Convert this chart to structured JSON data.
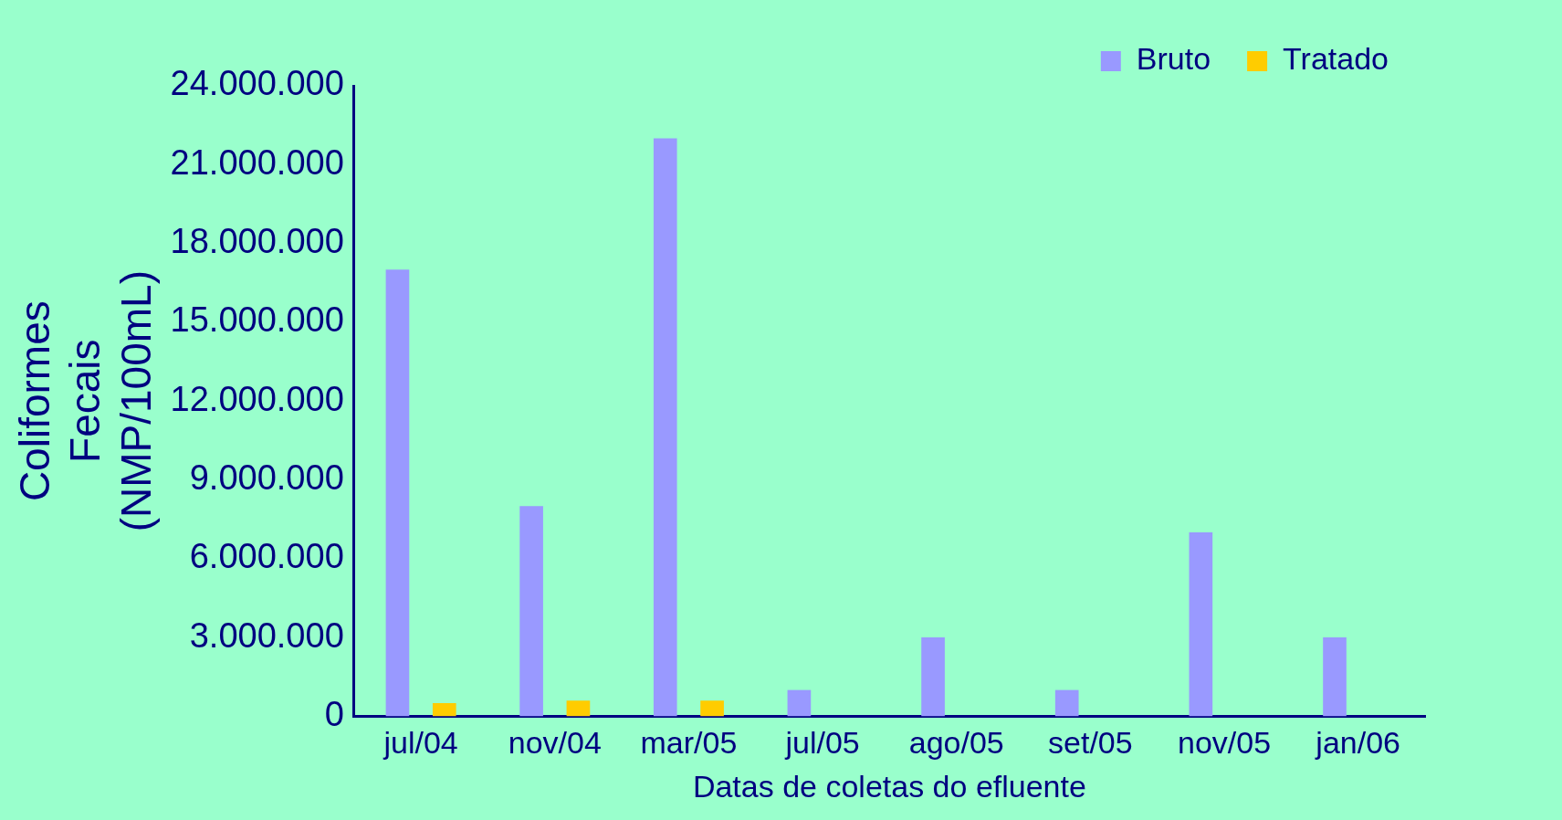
{
  "chart_data": {
    "type": "bar",
    "xlabel": "Datas de coletas do efluente",
    "ylabel": "Coliformes Fecais (NMP/100mL)",
    "categories": [
      "jul/04",
      "nov/04",
      "mar/05",
      "jul/05",
      "ago/05",
      "set/05",
      "nov/05",
      "jan/06"
    ],
    "series": [
      {
        "name": "Bruto",
        "color": "#9999ff",
        "values": [
          17000000,
          8000000,
          22000000,
          1000000,
          3000000,
          1000000,
          7000000,
          3000000
        ]
      },
      {
        "name": "Tratado",
        "color": "#ffcc00",
        "values": [
          500000,
          600000,
          600000,
          0,
          0,
          0,
          0,
          0
        ]
      }
    ],
    "ylim": [
      0,
      24000000
    ],
    "yticks": [
      {
        "value": 0,
        "label": "0"
      },
      {
        "value": 3000000,
        "label": "3.000.000"
      },
      {
        "value": 6000000,
        "label": "6.000.000"
      },
      {
        "value": 9000000,
        "label": "9.000.000"
      },
      {
        "value": 12000000,
        "label": "12.000.000"
      },
      {
        "value": 15000000,
        "label": "15.000.000"
      },
      {
        "value": 18000000,
        "label": "18.000.000"
      },
      {
        "value": 21000000,
        "label": "21.000.000"
      },
      {
        "value": 24000000,
        "label": "24.000.000"
      }
    ],
    "grid": false,
    "legend": "top right"
  }
}
